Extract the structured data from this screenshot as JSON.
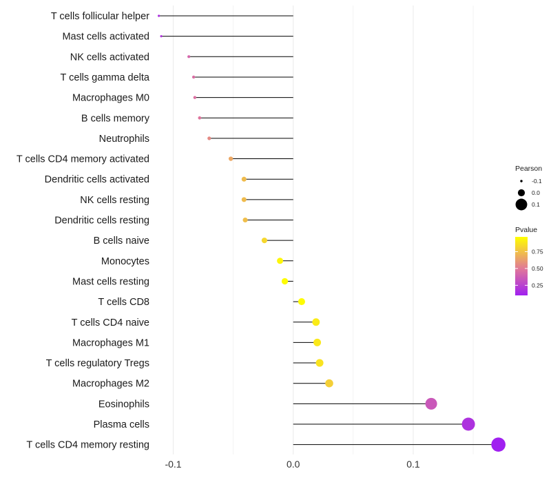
{
  "chart_data": {
    "type": "lollipop",
    "title": "",
    "xlabel": "",
    "ylabel": "",
    "xlim": [
      -0.1135,
      0.1735
    ],
    "x_ticks": [
      -0.1,
      0.0,
      0.1
    ],
    "x_tick_labels": [
      "-0.1",
      "0.0",
      "0.1"
    ],
    "grid": true,
    "categories": [
      "T cells follicular helper",
      "Mast cells activated",
      "NK cells activated",
      "T cells gamma delta",
      "Macrophages M0",
      "B cells memory",
      "Neutrophils",
      "T cells CD4 memory activated",
      "Dendritic cells activated",
      "NK cells resting",
      "Dendritic cells resting",
      "B cells naive",
      "Monocytes",
      "Mast cells resting",
      "T cells CD8",
      "T cells CD4 naive",
      "Macrophages M1",
      "T cells regulatory  Tregs ",
      "Macrophages M2",
      "Eosinophils",
      "Plasma cells",
      "T cells CD4 memory resting"
    ],
    "pearson": [
      -0.112,
      -0.11,
      -0.087,
      -0.083,
      -0.082,
      -0.078,
      -0.07,
      -0.052,
      -0.041,
      -0.041,
      -0.04,
      -0.024,
      -0.011,
      -0.007,
      0.007,
      0.019,
      0.02,
      0.022,
      0.03,
      0.115,
      0.146,
      0.171
    ],
    "pvalue": [
      0.18,
      0.2,
      0.42,
      0.45,
      0.46,
      0.48,
      0.56,
      0.66,
      0.73,
      0.73,
      0.74,
      0.83,
      0.94,
      0.96,
      0.96,
      0.9,
      0.89,
      0.87,
      0.8,
      0.35,
      0.18,
      0.1
    ],
    "legend": {
      "position": "right",
      "size_title": "Pearson",
      "size_entries": [
        {
          "label": "-0.1",
          "value": -0.1
        },
        {
          "label": "0.0",
          "value": 0.0
        },
        {
          "label": "0.1",
          "value": 0.1
        }
      ],
      "color_title": "Pvalue",
      "color_ticks": [
        {
          "label": "0.75",
          "value": 0.75
        },
        {
          "label": "0.50",
          "value": 0.5
        },
        {
          "label": "0.25",
          "value": 0.25
        }
      ],
      "color_range": [
        0.1,
        0.97
      ]
    },
    "colors": {
      "low": "#a020f0",
      "mid": "#e0779a",
      "high": "#ffff00",
      "stem": "#000000",
      "grid": "#ebebeb"
    }
  }
}
